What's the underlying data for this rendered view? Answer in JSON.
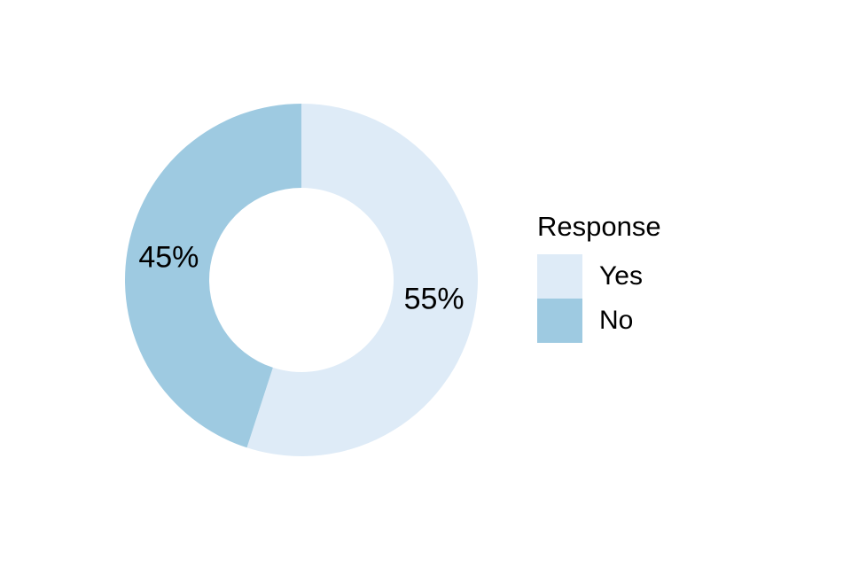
{
  "chart_data": {
    "type": "donut",
    "categories": [
      "Yes",
      "No"
    ],
    "values": [
      55,
      45
    ],
    "value_labels": [
      "55%",
      "45%"
    ],
    "colors": [
      "#deebf7",
      "#9ecae1"
    ],
    "legend_title": "Response",
    "legend": "right"
  }
}
